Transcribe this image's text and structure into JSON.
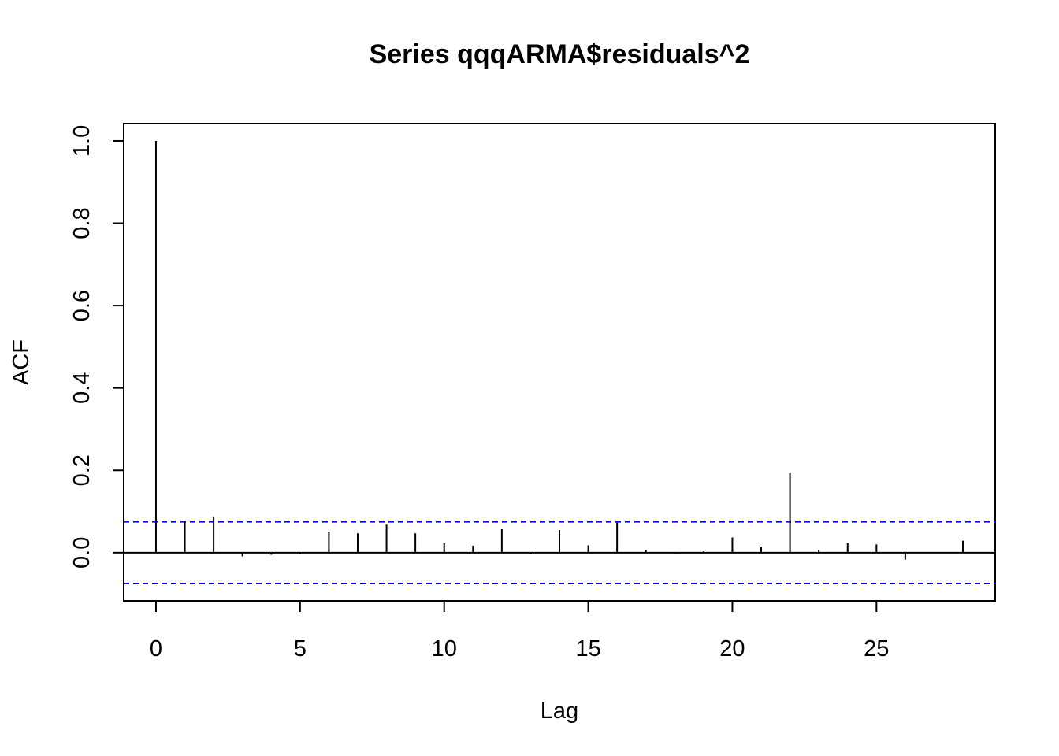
{
  "chart_data": {
    "type": "bar",
    "title": "Series  qqqARMA$residuals^2",
    "xlabel": "Lag",
    "ylabel": "ACF",
    "xlim": [
      -1.12,
      29.12
    ],
    "ylim": [
      -0.117,
      1.042
    ],
    "x_ticks": [
      0,
      5,
      10,
      15,
      20,
      25
    ],
    "y_ticks": [
      0.0,
      0.2,
      0.4,
      0.6,
      0.8,
      1.0
    ],
    "y_tick_labels": [
      "0.0",
      "0.2",
      "0.4",
      "0.6",
      "0.8",
      "1.0"
    ],
    "x_tick_labels": [
      "0",
      "5",
      "10",
      "15",
      "20",
      "25"
    ],
    "lags": [
      0,
      1,
      2,
      3,
      4,
      5,
      6,
      7,
      8,
      9,
      10,
      11,
      12,
      13,
      14,
      15,
      16,
      17,
      18,
      19,
      20,
      21,
      22,
      23,
      24,
      25,
      26,
      27,
      28
    ],
    "values": [
      1.0,
      0.077,
      0.088,
      -0.009,
      -0.005,
      -0.003,
      0.051,
      0.047,
      0.068,
      0.047,
      0.023,
      0.017,
      0.057,
      -0.004,
      0.055,
      0.018,
      0.073,
      0.006,
      -0.002,
      0.003,
      0.037,
      0.015,
      0.193,
      0.006,
      0.023,
      0.02,
      -0.017,
      0.001,
      0.029
    ],
    "confidence_bound": 0.075,
    "grid": false,
    "colors": {
      "bars": "#000000",
      "confidence_lines": "#0000ff",
      "zero_line": "#000000"
    }
  }
}
